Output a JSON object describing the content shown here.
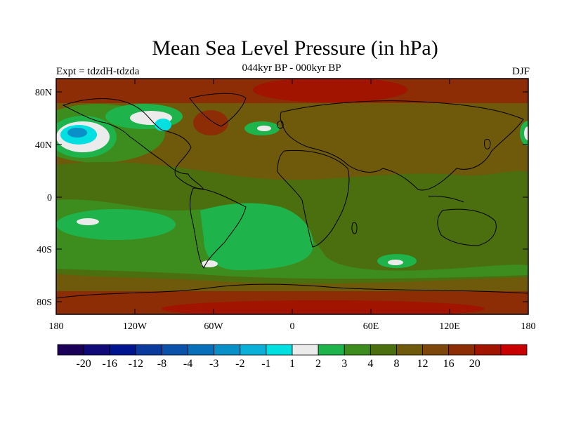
{
  "title": "Mean Sea Level Pressure (in hPa)",
  "subtitle": "044kyr BP - 000kyr BP",
  "experiment": "Expt = tdzdH-tdzda",
  "season": "DJF",
  "lat_labels": [
    "80N",
    "40N",
    "0",
    "40S",
    "80S"
  ],
  "lon_labels": [
    "180",
    "120W",
    "60W",
    "0",
    "60E",
    "120E",
    "180"
  ],
  "colorbar": {
    "colors": [
      "#1a0057",
      "#0f0a78",
      "#001490",
      "#0a3a9c",
      "#0a52aa",
      "#0870bb",
      "#0a90c8",
      "#0ab0d8",
      "#00e0e0",
      "#ebebeb",
      "#1eb44b",
      "#3c8c1e",
      "#4b6e0f",
      "#6e5a0a",
      "#7d460a",
      "#8c2d05",
      "#a01400",
      "#c80000"
    ],
    "labels": [
      "-20",
      "-16",
      "-12",
      "-8",
      "-4",
      "-3",
      "-2",
      "-1",
      "1",
      "2",
      "3",
      "4",
      "8",
      "12",
      "16",
      "20"
    ]
  },
  "colors": {
    "background": "#6e5a0a",
    "high": "#8c2d05",
    "highest": "#a01400",
    "moderate": "#4b6e0f",
    "low_green": "#3c8c1e",
    "bright_green": "#1eb44b",
    "near_zero": "#ebebeb",
    "cyan": "#00e0e0",
    "blue": "#0a90c8",
    "coast": "#000000"
  }
}
